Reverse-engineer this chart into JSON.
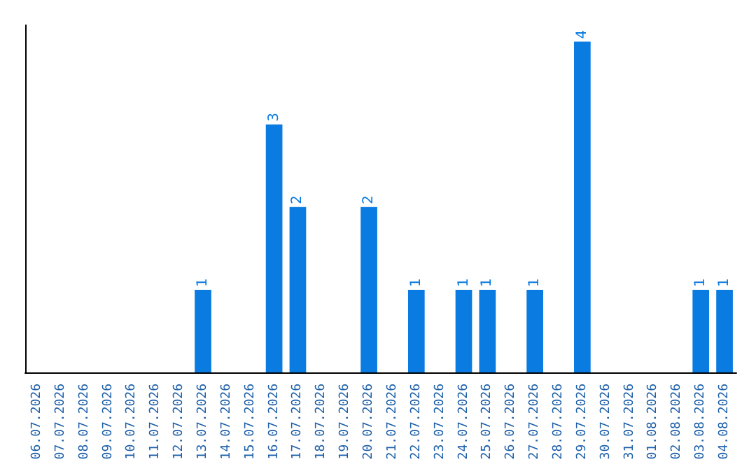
{
  "chart_data": {
    "type": "bar",
    "categories": [
      "06.07.2026",
      "07.07.2026",
      "08.07.2026",
      "09.07.2026",
      "10.07.2026",
      "11.07.2026",
      "12.07.2026",
      "13.07.2026",
      "14.07.2026",
      "15.07.2026",
      "16.07.2026",
      "17.07.2026",
      "18.07.2026",
      "19.07.2026",
      "20.07.2026",
      "21.07.2026",
      "22.07.2026",
      "23.07.2026",
      "24.07.2026",
      "25.07.2026",
      "26.07.2026",
      "27.07.2026",
      "28.07.2026",
      "29.07.2026",
      "30.07.2026",
      "31.07.2026",
      "01.08.2026",
      "02.08.2026",
      "03.08.2026",
      "04.08.2026"
    ],
    "values": [
      0,
      0,
      0,
      0,
      0,
      0,
      0,
      1,
      0,
      0,
      3,
      2,
      0,
      0,
      2,
      0,
      1,
      0,
      1,
      1,
      0,
      1,
      0,
      4,
      0,
      0,
      0,
      0,
      1,
      1
    ],
    "value_labels": [
      null,
      null,
      null,
      null,
      null,
      null,
      null,
      "1",
      null,
      null,
      "3",
      "2",
      null,
      null,
      "2",
      null,
      "1",
      null,
      "1",
      "1",
      null,
      "1",
      null,
      "4",
      null,
      null,
      null,
      null,
      "1",
      "1"
    ],
    "color": "#0a7be0",
    "ylim": [
      0,
      4.2
    ],
    "tick_labels": "x"
  }
}
